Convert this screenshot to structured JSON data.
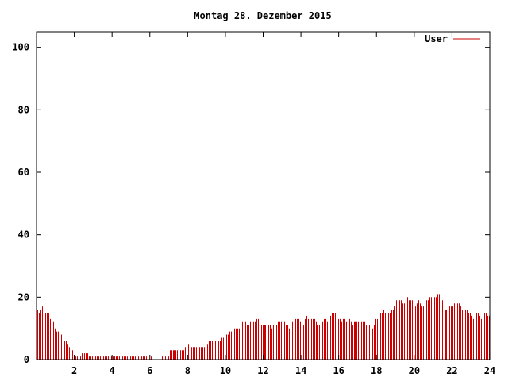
{
  "chart_data": {
    "type": "bar",
    "title": "Montag 28. Dezember 2015",
    "xlabel": "",
    "ylabel": "",
    "xlim": [
      0,
      24
    ],
    "ylim": [
      0,
      105
    ],
    "x_ticks": [
      2,
      4,
      6,
      8,
      10,
      12,
      14,
      16,
      18,
      20,
      22,
      24
    ],
    "y_ticks": [
      0,
      20,
      40,
      60,
      80,
      100
    ],
    "grid": false,
    "legend_position": "top-right",
    "bar_color": "#cc0000",
    "interval_minutes": 5,
    "series": [
      {
        "name": "User",
        "color": "#cc0000",
        "values": [
          16,
          15,
          16,
          17,
          16,
          15,
          15,
          15,
          13,
          13,
          12,
          10,
          9,
          9,
          9,
          8,
          6,
          6,
          6,
          5,
          4,
          3,
          3,
          1,
          1,
          1,
          1,
          1,
          2,
          2,
          2,
          2,
          2,
          1,
          1,
          1,
          1,
          1,
          1,
          1,
          1,
          1,
          1,
          1,
          1,
          1,
          1,
          1,
          1,
          1,
          1,
          1,
          1,
          1,
          1,
          1,
          1,
          1,
          1,
          1,
          1,
          1,
          1,
          1,
          1,
          1,
          1,
          1,
          1,
          1,
          1,
          0,
          1,
          0,
          0,
          0,
          0,
          0,
          0,
          1,
          1,
          1,
          1,
          1,
          3,
          3,
          3,
          3,
          3,
          3,
          3,
          3,
          3,
          3,
          4,
          4,
          5,
          4,
          4,
          4,
          4,
          4,
          4,
          4,
          4,
          4,
          4,
          5,
          5,
          6,
          6,
          6,
          6,
          6,
          6,
          6,
          6,
          7,
          7,
          7,
          8,
          8,
          9,
          9,
          9,
          10,
          10,
          10,
          10,
          12,
          12,
          12,
          12,
          11,
          11,
          12,
          12,
          12,
          12,
          13,
          13,
          11,
          11,
          11,
          11,
          11,
          11,
          11,
          11,
          10,
          11,
          10,
          11,
          12,
          12,
          12,
          11,
          12,
          11,
          11,
          10,
          12,
          12,
          12,
          13,
          13,
          13,
          12,
          12,
          11,
          13,
          14,
          13,
          13,
          13,
          13,
          13,
          12,
          11,
          11,
          11,
          12,
          13,
          13,
          12,
          13,
          14,
          15,
          15,
          15,
          13,
          13,
          13,
          12,
          13,
          13,
          12,
          12,
          13,
          12,
          11,
          12,
          12,
          12,
          12,
          12,
          12,
          12,
          12,
          11,
          11,
          11,
          11,
          10,
          11,
          13,
          13,
          15,
          15,
          15,
          16,
          15,
          15,
          15,
          15,
          16,
          16,
          17,
          19,
          20,
          19,
          19,
          18,
          18,
          18,
          20,
          19,
          19,
          19,
          19,
          17,
          18,
          19,
          18,
          17,
          17,
          18,
          19,
          19,
          20,
          20,
          20,
          20,
          20,
          21,
          21,
          20,
          19,
          18,
          16,
          16,
          16,
          17,
          17,
          17,
          18,
          18,
          18,
          18,
          17,
          16,
          16,
          16,
          16,
          15,
          15,
          14,
          13,
          13,
          15,
          15,
          14,
          13,
          13,
          15,
          15,
          14,
          14
        ]
      }
    ]
  }
}
